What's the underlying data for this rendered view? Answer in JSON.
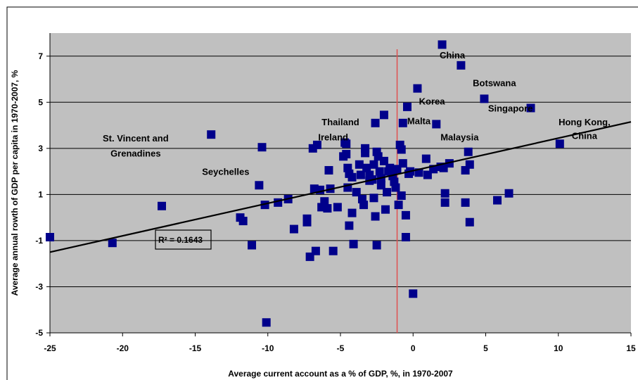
{
  "chart_data": {
    "type": "scatter",
    "xlabel": "Average current account as a % of GDP, %, in 1970-2007",
    "ylabel": "Average annual rowth of GDP per capita in 1970-2007, %",
    "xlim": [
      -25,
      15
    ],
    "ylim": [
      -5,
      8
    ],
    "xticks": [
      -25,
      -20,
      -15,
      -10,
      -5,
      0,
      5,
      10,
      15
    ],
    "yticks": [
      -5,
      -3,
      -1,
      1,
      3,
      5,
      7
    ],
    "grid": true,
    "colors": {
      "plot_background": "#c0c0c0",
      "marker": "#00008b",
      "trendline": "#000000",
      "reference_line": "#e05050"
    },
    "marker": "square",
    "reference_line_x": -1.1,
    "trendline": {
      "x": [
        -25,
        15
      ],
      "y": [
        -1.5,
        4.15
      ]
    },
    "r_squared_label": "R² = 0.1643",
    "annotations": [
      {
        "text": "China",
        "x": 2.7,
        "y": 6.9
      },
      {
        "text": "Botswana",
        "x": 5.6,
        "y": 5.7
      },
      {
        "text": "Korea",
        "x": 1.3,
        "y": 4.9
      },
      {
        "text": "Singapore",
        "x": 6.7,
        "y": 4.6
      },
      {
        "text": "Malta",
        "x": 0.4,
        "y": 4.05
      },
      {
        "text": "Thailand",
        "x": -5.0,
        "y": 4.0
      },
      {
        "text": "Hong Kong,",
        "x": 11.8,
        "y": 4.0
      },
      {
        "text": "China",
        "x": 11.8,
        "y": 3.4
      },
      {
        "text": "St. Vincent and",
        "x": -19.1,
        "y": 3.3
      },
      {
        "text": "Grenadines",
        "x": -19.1,
        "y": 2.65
      },
      {
        "text": "Ireland",
        "x": -5.5,
        "y": 3.35
      },
      {
        "text": "Malaysia",
        "x": 3.2,
        "y": 3.35
      },
      {
        "text": "Seychelles",
        "x": -12.9,
        "y": 1.85
      }
    ],
    "points": [
      [
        -25,
        -0.85
      ],
      [
        -20.7,
        -1.1
      ],
      [
        -17.3,
        0.5
      ],
      [
        -13.9,
        3.6
      ],
      [
        -11.9,
        0.0
      ],
      [
        -11.7,
        -0.15
      ],
      [
        -11.1,
        -1.2
      ],
      [
        -10.6,
        1.4
      ],
      [
        -10.4,
        3.05
      ],
      [
        -10.2,
        0.55
      ],
      [
        -10.1,
        -4.55
      ],
      [
        -9.3,
        0.65
      ],
      [
        -8.6,
        0.8
      ],
      [
        -8.2,
        -0.5
      ],
      [
        -7.3,
        -0.2
      ],
      [
        -7.3,
        -0.05
      ],
      [
        -7.1,
        -1.7
      ],
      [
        -6.9,
        3.0
      ],
      [
        -6.8,
        1.25
      ],
      [
        -6.7,
        -1.45
      ],
      [
        -6.6,
        3.15
      ],
      [
        -6.4,
        1.2
      ],
      [
        -6.3,
        0.45
      ],
      [
        -6.1,
        0.7
      ],
      [
        -5.9,
        0.4
      ],
      [
        -5.8,
        2.05
      ],
      [
        -5.7,
        1.25
      ],
      [
        -5.5,
        -1.45
      ],
      [
        -5.2,
        0.45
      ],
      [
        -4.8,
        2.65
      ],
      [
        -4.7,
        3.25
      ],
      [
        -4.6,
        2.75
      ],
      [
        -4.5,
        1.3
      ],
      [
        -4.6,
        3.2
      ],
      [
        -4.5,
        2.15
      ],
      [
        -4.4,
        1.9
      ],
      [
        -4.4,
        -0.35
      ],
      [
        -4.2,
        1.75
      ],
      [
        -4.2,
        0.2
      ],
      [
        -4.1,
        -1.15
      ],
      [
        -3.9,
        1.1
      ],
      [
        -3.7,
        2.3
      ],
      [
        -3.6,
        1.85
      ],
      [
        -3.5,
        0.8
      ],
      [
        -3.4,
        0.55
      ],
      [
        -3.3,
        3.0
      ],
      [
        -3.3,
        2.8
      ],
      [
        -3.2,
        2.15
      ],
      [
        -3.0,
        1.85
      ],
      [
        -3.0,
        1.6
      ],
      [
        -2.8,
        1.65
      ],
      [
        -2.7,
        2.3
      ],
      [
        -2.7,
        0.85
      ],
      [
        -2.6,
        0.05
      ],
      [
        -2.6,
        4.1
      ],
      [
        -2.5,
        2.85
      ],
      [
        -2.5,
        -1.2
      ],
      [
        -2.4,
        2.65
      ],
      [
        -2.3,
        2.0
      ],
      [
        -2.2,
        1.7
      ],
      [
        -2.2,
        1.4
      ],
      [
        -2.0,
        2.45
      ],
      [
        -2.0,
        4.45
      ],
      [
        -1.9,
        0.35
      ],
      [
        -1.8,
        1.1
      ],
      [
        -1.7,
        2.0
      ],
      [
        -1.6,
        2.15
      ],
      [
        -1.4,
        1.8
      ],
      [
        -1.3,
        1.55
      ],
      [
        -1.2,
        1.3
      ],
      [
        -1.1,
        2.1
      ],
      [
        -1.0,
        0.55
      ],
      [
        -0.9,
        3.15
      ],
      [
        -0.8,
        2.95
      ],
      [
        -0.8,
        0.95
      ],
      [
        -0.7,
        4.1
      ],
      [
        -0.7,
        2.35
      ],
      [
        -0.5,
        -0.85
      ],
      [
        -0.5,
        0.1
      ],
      [
        -0.4,
        4.8
      ],
      [
        -0.3,
        1.9
      ],
      [
        -0.2,
        2.0
      ],
      [
        0.0,
        -3.3
      ],
      [
        0.3,
        5.6
      ],
      [
        0.4,
        1.95
      ],
      [
        0.9,
        2.55
      ],
      [
        1.0,
        1.85
      ],
      [
        1.4,
        2.1
      ],
      [
        1.6,
        4.05
      ],
      [
        1.9,
        2.2
      ],
      [
        2.0,
        7.5
      ],
      [
        2.1,
        2.15
      ],
      [
        2.2,
        0.65
      ],
      [
        2.2,
        1.05
      ],
      [
        2.5,
        2.35
      ],
      [
        3.3,
        6.6
      ],
      [
        3.6,
        2.05
      ],
      [
        3.6,
        0.65
      ],
      [
        3.8,
        2.85
      ],
      [
        3.9,
        -0.2
      ],
      [
        3.9,
        2.3
      ],
      [
        4.9,
        5.15
      ],
      [
        5.8,
        0.75
      ],
      [
        6.6,
        1.05
      ],
      [
        8.1,
        4.75
      ],
      [
        10.1,
        3.2
      ]
    ]
  }
}
